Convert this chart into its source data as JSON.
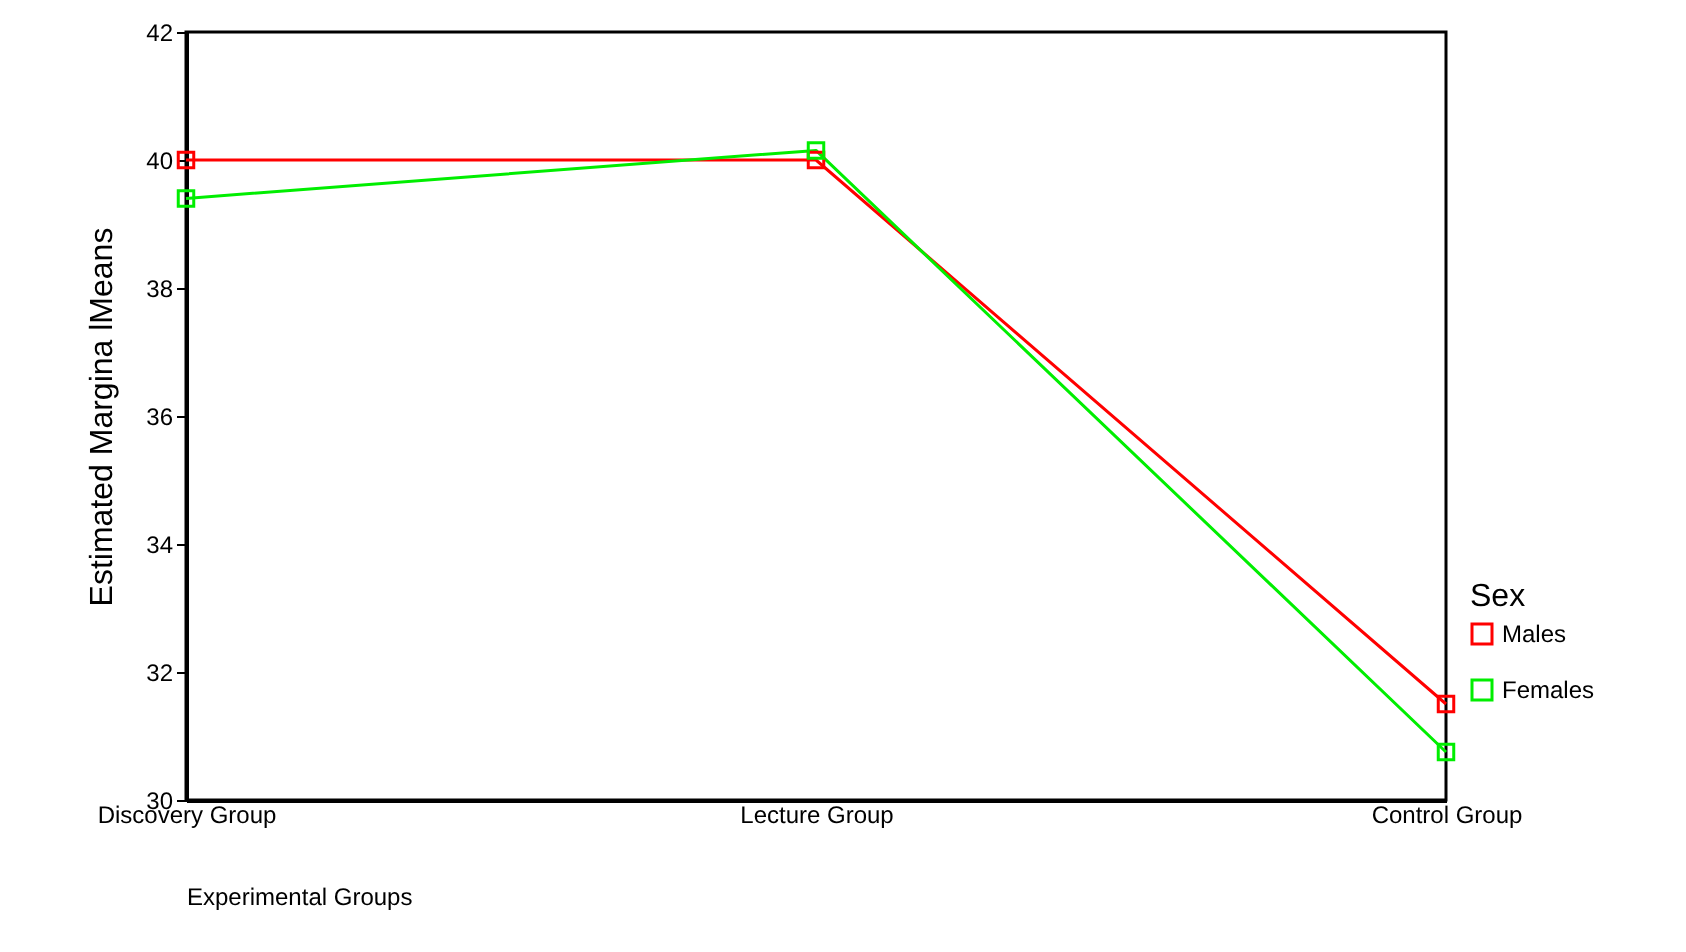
{
  "chart_data": {
    "type": "line",
    "xlabel": "Experimental Groups",
    "ylabel": "Estimated Margina lMeans",
    "legend_title": "Sex",
    "categories": [
      "Discovery Group",
      "Lecture Group",
      "Control Group"
    ],
    "series": [
      {
        "name": "Males",
        "color": "#ff0000",
        "values": [
          40.0,
          40.0,
          31.5
        ]
      },
      {
        "name": "Females",
        "color": "#00ee00",
        "values": [
          39.4,
          40.15,
          30.75
        ]
      }
    ],
    "ylim": [
      30,
      42
    ],
    "yticks": [
      30,
      32,
      34,
      36,
      38,
      40,
      42
    ],
    "grid": false,
    "legend": "bottom right",
    "marker": "square",
    "line_style": "solid"
  }
}
